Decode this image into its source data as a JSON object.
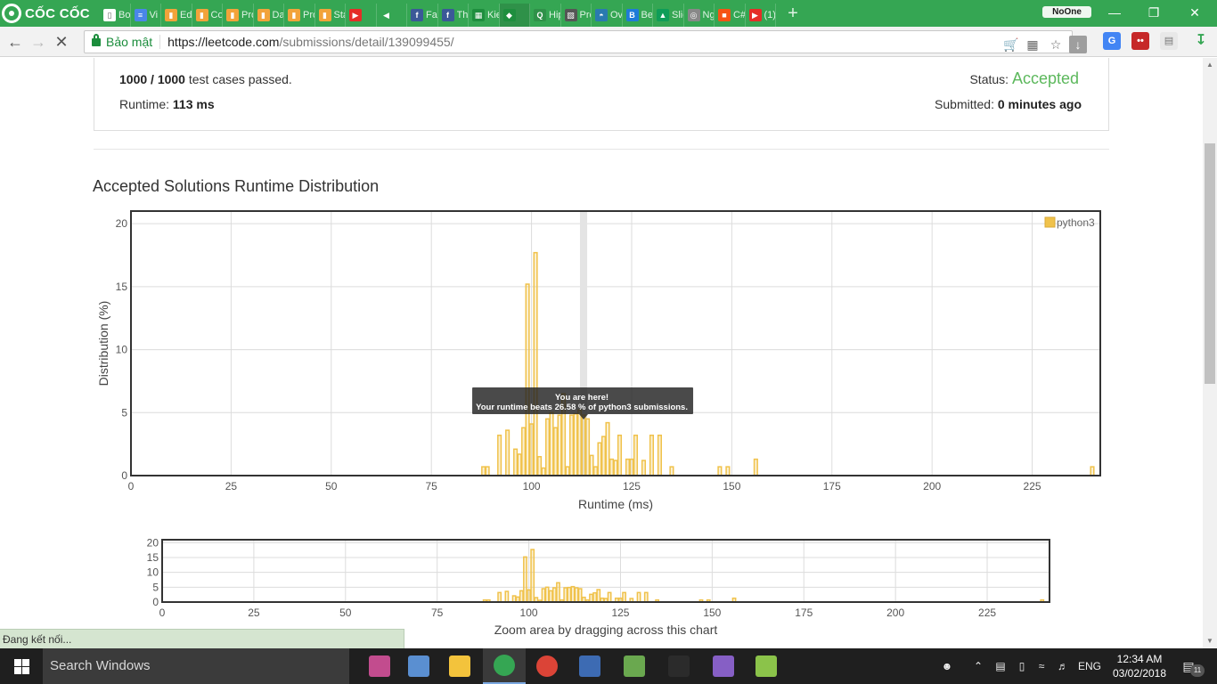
{
  "browser": {
    "brand": "CỐC CỐC",
    "tabs": [
      {
        "label": "Bo",
        "color": "#ffffff",
        "glyph": "▯"
      },
      {
        "label": "Vi",
        "color": "#4a86e8",
        "glyph": "≡"
      },
      {
        "label": "Edi",
        "color": "#f2a33a",
        "glyph": "▮"
      },
      {
        "label": "Co",
        "color": "#f2a33a",
        "glyph": "▮"
      },
      {
        "label": "Pro",
        "color": "#f2a33a",
        "glyph": "▮"
      },
      {
        "label": "Da",
        "color": "#f2a33a",
        "glyph": "▮"
      },
      {
        "label": "Pro",
        "color": "#f2a33a",
        "glyph": "▮"
      },
      {
        "label": "Sta",
        "color": "#f2a33a",
        "glyph": "▮"
      },
      {
        "label": "",
        "color": "#e52d27",
        "glyph": "▶"
      },
      {
        "label": "",
        "color": "#35a653",
        "glyph": "◀"
      },
      {
        "label": "Fac",
        "color": "#3b5998",
        "glyph": "f"
      },
      {
        "label": "Tha",
        "color": "#3b5998",
        "glyph": "f"
      },
      {
        "label": "Kie",
        "color": "#1e8e3e",
        "glyph": "▦"
      },
      {
        "label": "",
        "color": "#1e8e3e",
        "glyph": "◆"
      },
      {
        "label": "Hip",
        "color": "#2f9149",
        "glyph": "Q"
      },
      {
        "label": "Pro",
        "color": "#555555",
        "glyph": "▧"
      },
      {
        "label": "Ov",
        "color": "#2a7ab0",
        "glyph": "◓"
      },
      {
        "label": "Be",
        "color": "#1f7bd8",
        "glyph": "B"
      },
      {
        "label": "Slic",
        "color": "#0f9d58",
        "glyph": "▲"
      },
      {
        "label": "Ng",
        "color": "#888888",
        "glyph": "◎"
      },
      {
        "label": "C#",
        "color": "#f65314",
        "glyph": "■"
      },
      {
        "label": "(1)",
        "color": "#e52d27",
        "glyph": "▶"
      }
    ],
    "profile": "NoOne",
    "url_host": "https://leetcode.com",
    "url_path": "/submissions/detail/139099455/",
    "secure_label": "Bảo mật",
    "status_text": "Đang kết nối..."
  },
  "summary": {
    "passed_count": "1000 / 1000",
    "passed_suffix": " test cases passed.",
    "runtime_label": "Runtime: ",
    "runtime_value": "113 ms",
    "status_label": "Status: ",
    "status_value": "Accepted",
    "submitted_label": "Submitted: ",
    "submitted_value": "0 minutes ago"
  },
  "section_title": "Accepted Solutions Runtime Distribution",
  "chart_data": [
    {
      "type": "bar",
      "xlabel": "Runtime (ms)",
      "ylabel": "Distribution (%)",
      "xlim": [
        0,
        242
      ],
      "ylim": [
        0,
        21
      ],
      "xticks": [
        0,
        25,
        50,
        75,
        100,
        125,
        150,
        175,
        200,
        225
      ],
      "yticks": [
        0,
        5,
        10,
        15,
        20
      ],
      "grid": true,
      "legend_position": "top-right",
      "highlight_x": 113,
      "tooltip": {
        "title": "You are here!",
        "text": "Your runtime beats 26.58 % of python3 submissions."
      },
      "series": [
        {
          "name": "python3",
          "color": "#f0c24b",
          "x": [
            88,
            89,
            92,
            94,
            96,
            97,
            98,
            99,
            100,
            101,
            102,
            103,
            104,
            105,
            106,
            107,
            108,
            109,
            110,
            111,
            112,
            113,
            114,
            115,
            116,
            117,
            118,
            119,
            120,
            121,
            122,
            124,
            125,
            126,
            128,
            130,
            132,
            135,
            147,
            149,
            156,
            240
          ],
          "y": [
            0.7,
            0.7,
            3.2,
            3.6,
            2.1,
            1.7,
            3.8,
            15.2,
            4.1,
            17.7,
            1.5,
            0.6,
            4.5,
            5.0,
            3.8,
            4.8,
            6.5,
            0.7,
            4.8,
            4.9,
            5.2,
            4.8,
            4.5,
            1.6,
            0.7,
            2.6,
            3.1,
            4.2,
            1.3,
            1.2,
            3.2,
            1.3,
            1.3,
            3.2,
            1.2,
            3.2,
            3.2,
            0.7,
            0.7,
            0.7,
            1.3,
            0.7
          ]
        }
      ]
    },
    {
      "type": "bar",
      "xlabel": "Zoom area by dragging across this chart",
      "ylabel": "",
      "xlim": [
        0,
        242
      ],
      "ylim": [
        0,
        21
      ],
      "xticks": [
        0,
        25,
        50,
        75,
        100,
        125,
        150,
        175,
        200,
        225
      ],
      "yticks": [
        0,
        5,
        10,
        15,
        20
      ],
      "grid": true,
      "series": [
        {
          "name": "python3",
          "color": "#f0c24b",
          "x": [
            88,
            89,
            92,
            94,
            96,
            97,
            98,
            99,
            100,
            101,
            102,
            103,
            104,
            105,
            106,
            107,
            108,
            109,
            110,
            111,
            112,
            113,
            114,
            115,
            116,
            117,
            118,
            119,
            120,
            121,
            122,
            124,
            125,
            126,
            128,
            130,
            132,
            135,
            147,
            149,
            156,
            240
          ],
          "y": [
            0.7,
            0.7,
            3.2,
            3.6,
            2.1,
            1.7,
            3.8,
            15.2,
            4.1,
            17.7,
            1.5,
            0.6,
            4.5,
            5.0,
            3.8,
            4.8,
            6.5,
            0.7,
            4.8,
            4.9,
            5.2,
            4.8,
            4.5,
            1.6,
            0.7,
            2.6,
            3.1,
            4.2,
            1.3,
            1.2,
            3.2,
            1.3,
            1.3,
            3.2,
            1.2,
            3.2,
            3.2,
            0.7,
            0.7,
            0.7,
            1.3,
            0.7
          ]
        }
      ]
    }
  ],
  "taskbar": {
    "search_placeholder": "Search Windows",
    "language": "ENG",
    "time": "12:34 AM",
    "date": "03/02/2018",
    "notification_count": "11",
    "apps": [
      {
        "name": "paint-app",
        "color": "#c24c8e"
      },
      {
        "name": "palette-app",
        "color": "#5a8fd1"
      },
      {
        "name": "file-explorer-app",
        "color": "#f3c33c"
      },
      {
        "name": "coccoc-app",
        "color": "#35a653"
      },
      {
        "name": "chrome-app",
        "color": "#db4437"
      },
      {
        "name": "devcpp-app",
        "color": "#3d6bb3"
      },
      {
        "name": "colors-app",
        "color": "#6aa84f"
      },
      {
        "name": "calculator-app",
        "color": "#2b2b2b"
      },
      {
        "name": "visual-studio-app",
        "color": "#865fc5"
      },
      {
        "name": "chart-app",
        "color": "#8bc34a"
      }
    ]
  }
}
